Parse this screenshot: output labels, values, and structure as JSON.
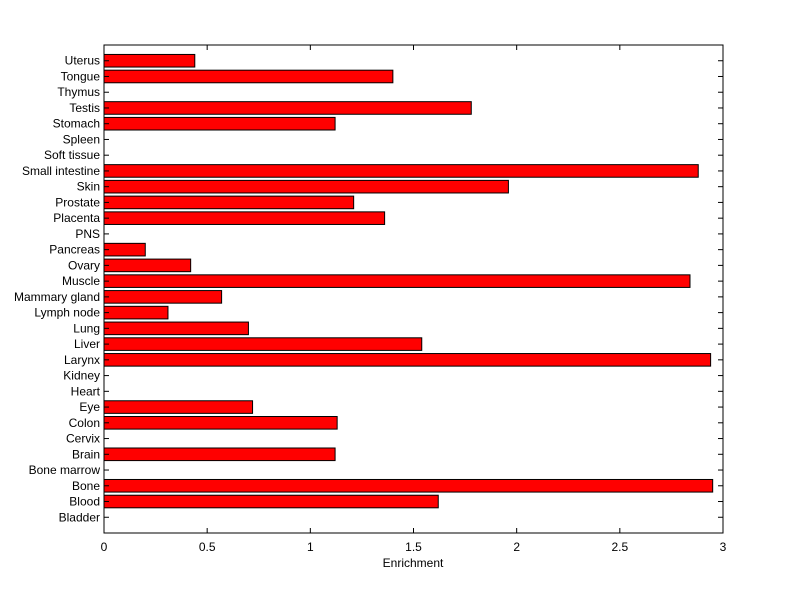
{
  "chart_data": {
    "type": "bar",
    "orientation": "horizontal",
    "title": "",
    "xlabel": "Enrichment",
    "ylabel": "",
    "xlim": [
      0,
      3
    ],
    "xticks": [
      "0",
      "0.5",
      "1",
      "1.5",
      "2",
      "2.5",
      "3"
    ],
    "grid": false,
    "legend": "none",
    "colors": {
      "bar_fill": "#ff0000",
      "bar_edge": "#000000",
      "axis": "#000000",
      "background": "#ffffff"
    },
    "categories": [
      "Bladder",
      "Blood",
      "Bone",
      "Bone marrow",
      "Brain",
      "Cervix",
      "Colon",
      "Eye",
      "Heart",
      "Kidney",
      "Larynx",
      "Liver",
      "Lung",
      "Lymph node",
      "Mammary gland",
      "Muscle",
      "Ovary",
      "Pancreas",
      "PNS",
      "Placenta",
      "Prostate",
      "Skin",
      "Small intestine",
      "Soft tissue",
      "Spleen",
      "Stomach",
      "Testis",
      "Thymus",
      "Tongue",
      "Uterus"
    ],
    "values": [
      0,
      1.62,
      2.95,
      0,
      1.12,
      0,
      1.13,
      0.72,
      0,
      0,
      2.94,
      1.54,
      0.7,
      0.31,
      0.57,
      2.84,
      0.42,
      0.2,
      0,
      1.36,
      1.21,
      1.96,
      2.88,
      0,
      0,
      1.12,
      1.78,
      0,
      1.4,
      0.44
    ]
  }
}
